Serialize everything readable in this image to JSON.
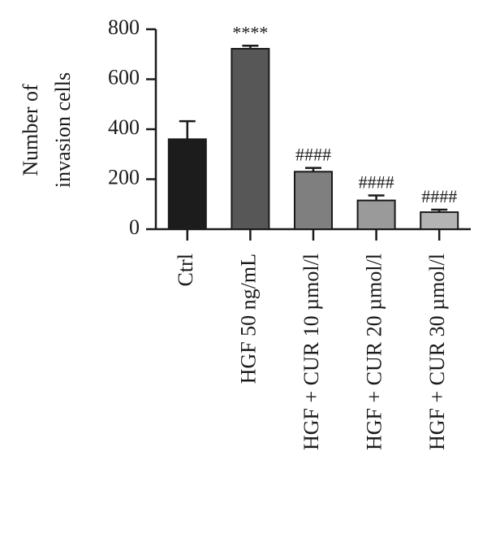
{
  "chart_data": {
    "type": "bar",
    "ylabel": [
      "Number of",
      "invasion cells"
    ],
    "categories": [
      "Ctrl",
      "HGF 50 ng/mL",
      "HGF + CUR 10 µmol/l",
      "HGF + CUR 20 µmol/l",
      "HGF + CUR 30 µmol/l"
    ],
    "values": [
      360,
      722,
      230,
      115,
      68
    ],
    "errors": [
      72,
      12,
      15,
      20,
      10
    ],
    "annotations": [
      null,
      "****",
      "####",
      "####",
      "####"
    ],
    "colors": [
      "#1c1c1c",
      "#575757",
      "#7f7f7f",
      "#9a9a9a",
      "#b4b4b4"
    ],
    "ylim": [
      0,
      800
    ],
    "yticks": [
      0,
      200,
      400,
      600,
      800
    ]
  }
}
